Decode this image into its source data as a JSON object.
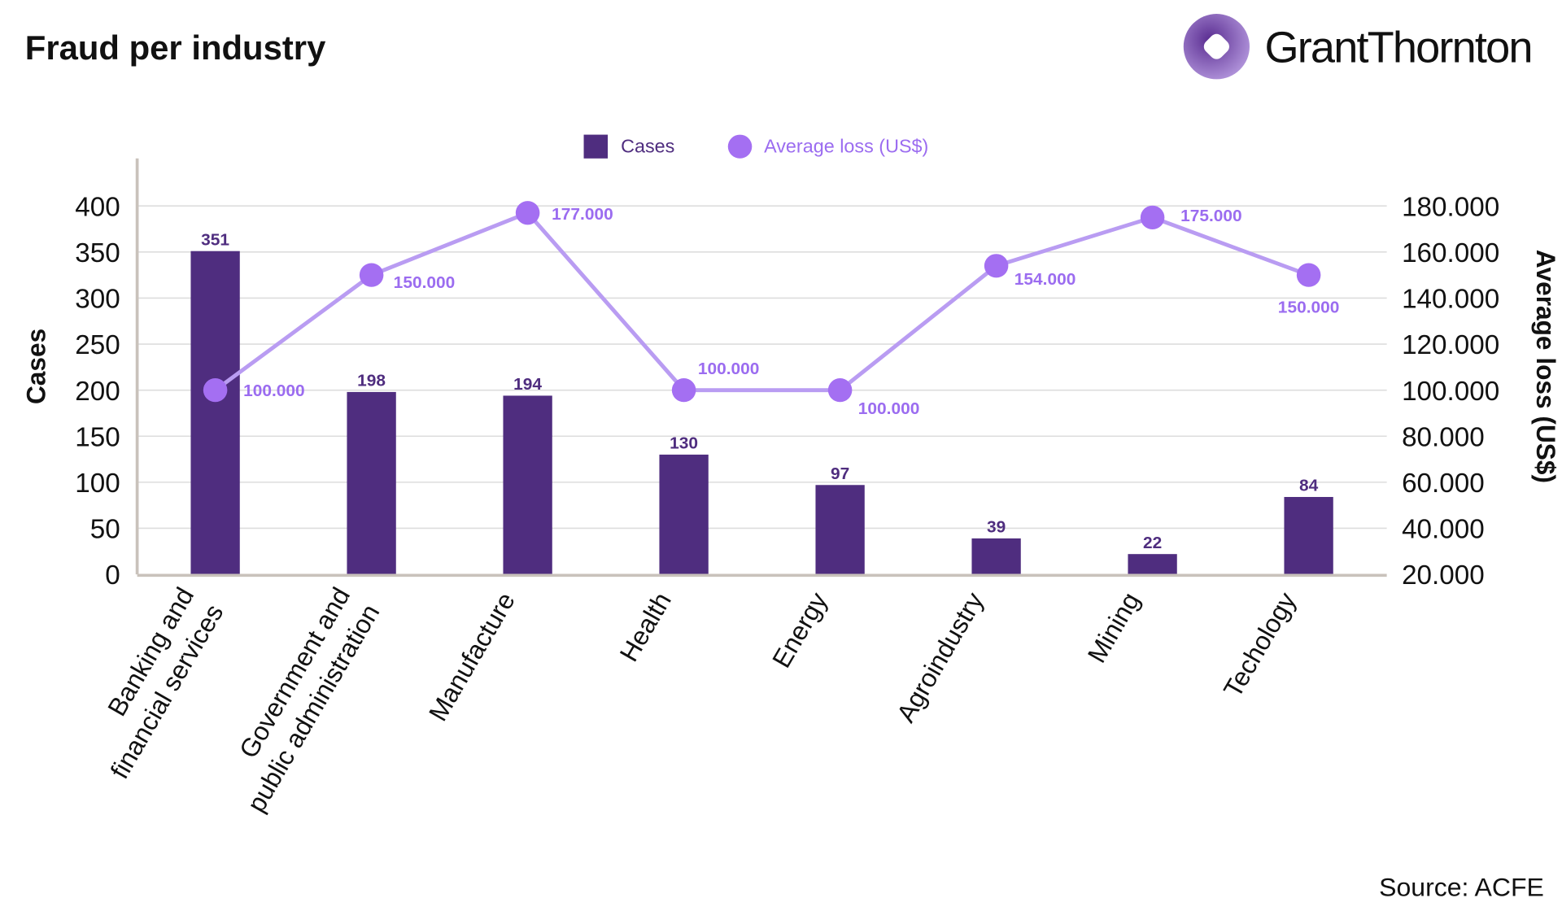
{
  "title": "Fraud per industry",
  "logo_text": "GrantThornton",
  "source": "Source: ACFE",
  "colors": {
    "bars": "#4f2d7f",
    "line": "#b99cf2",
    "points": "#a46ff2",
    "line_labels": "#9b6cf0",
    "grid": "#dddddd",
    "axis": "#c9c2bb"
  },
  "chart_data": {
    "type": "bar+line",
    "title": "Fraud per industry",
    "categories": [
      "Banking and\nfinancial services",
      "Government and\npublic administration",
      "Manufacture",
      "Health",
      "Energy",
      "Agroindustry",
      "Mining",
      "Techology"
    ],
    "series": [
      {
        "name": "Cases",
        "type": "bar",
        "axis": "left",
        "values": [
          351,
          198,
          194,
          130,
          97,
          39,
          22,
          84
        ],
        "labels": [
          "351",
          "198",
          "194",
          "130",
          "97",
          "39",
          "22",
          "84"
        ]
      },
      {
        "name": "Average loss (US$)",
        "type": "line",
        "axis": "right",
        "values": [
          100000,
          150000,
          177000,
          100000,
          100000,
          154000,
          175000,
          150000
        ],
        "labels": [
          "100.000",
          "150.000",
          "177.000",
          "100.000",
          "100.000",
          "154.000",
          "175.000",
          "150.000"
        ]
      }
    ],
    "ylabel": "Cases",
    "ylim": [
      0,
      400
    ],
    "yticks": [
      "0",
      "50",
      "100",
      "150",
      "200",
      "250",
      "300",
      "350",
      "400"
    ],
    "y2label": "Average loss (US$)",
    "y2lim": [
      20000,
      180000
    ],
    "y2ticks": [
      "20.000",
      "40.000",
      "60.000",
      "80.000",
      "100.000",
      "120.000",
      "140.000",
      "160.000",
      "180.000"
    ],
    "grid": true,
    "legend": "top-center"
  }
}
